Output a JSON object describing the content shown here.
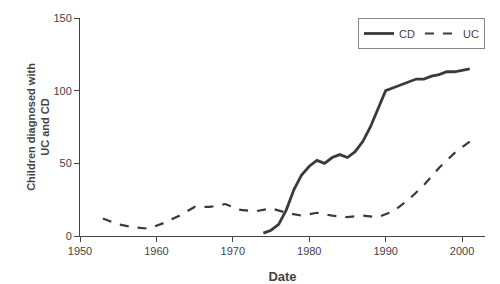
{
  "chart_data": {
    "type": "line",
    "xlabel": "Date",
    "ylabel": "Children diagnosed with\nUC and CD",
    "series": [
      {
        "name": "CD",
        "color": "#3a3a3a",
        "line_style": "solid",
        "x": [
          1974,
          1975,
          1976,
          1977,
          1978,
          1979,
          1980,
          1981,
          1982,
          1983,
          1984,
          1985,
          1986,
          1987,
          1988,
          1989,
          1990,
          1991,
          1992,
          1993,
          1994,
          1995,
          1996,
          1997,
          1998,
          1999,
          2000,
          2001
        ],
        "values": [
          2,
          4,
          8,
          18,
          32,
          42,
          48,
          52,
          50,
          54,
          56,
          54,
          58,
          65,
          75,
          88,
          100,
          102,
          104,
          106,
          108,
          108,
          110,
          111,
          113,
          113,
          114,
          115
        ]
      },
      {
        "name": " UC",
        "color": "#3a3a3a",
        "line_style": "dashed",
        "x": [
          1953,
          1955,
          1957,
          1959,
          1961,
          1963,
          1965,
          1967,
          1969,
          1971,
          1973,
          1975,
          1977,
          1979,
          1981,
          1983,
          1985,
          1987,
          1989,
          1991,
          1993,
          1995,
          1997,
          1999,
          2001
        ],
        "values": [
          12,
          8,
          6,
          5,
          9,
          14,
          20,
          20,
          22,
          18,
          17,
          19,
          16,
          14,
          16,
          14,
          13,
          14,
          13,
          17,
          25,
          35,
          47,
          57,
          65
        ]
      }
    ],
    "xlim": [
      1950,
      2003
    ],
    "ylim": [
      0,
      150
    ],
    "xticks": [
      1950,
      1960,
      1970,
      1980,
      1990,
      2000
    ],
    "yticks": [
      0,
      50,
      100,
      150
    ],
    "grid": false,
    "legend": "upper right"
  }
}
